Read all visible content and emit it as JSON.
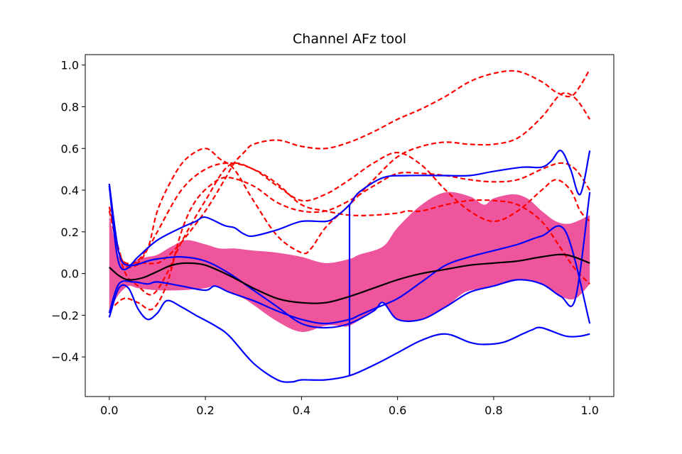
{
  "chart_data": {
    "type": "line",
    "title": "Channel AFz tool",
    "xlabel": "",
    "ylabel": "",
    "xlim": [
      -0.05,
      1.05
    ],
    "ylim": [
      -0.59,
      1.05
    ],
    "xticks": [
      0.0,
      0.2,
      0.4,
      0.6,
      0.8,
      1.0
    ],
    "xtick_labels": [
      "0.0",
      "0.2",
      "0.4",
      "0.6",
      "0.8",
      "1.0"
    ],
    "yticks": [
      -0.4,
      -0.2,
      0.0,
      0.2,
      0.4,
      0.6,
      0.8,
      1.0
    ],
    "ytick_labels": [
      "−0.4",
      "−0.2",
      "0.0",
      "0.2",
      "0.4",
      "0.6",
      "0.8",
      "1.0"
    ],
    "grid": false,
    "legend": "none",
    "colors": {
      "band": "#ee559c",
      "outlier": "#ff0000",
      "envelope": "#0000ff",
      "median": "#000000"
    },
    "band": {
      "upper": [
        [
          0.0,
          0.28
        ],
        [
          0.02,
          0.08
        ],
        [
          0.04,
          0.04
        ],
        [
          0.06,
          0.07
        ],
        [
          0.08,
          0.08
        ],
        [
          0.1,
          0.09
        ],
        [
          0.13,
          0.13
        ],
        [
          0.16,
          0.16
        ],
        [
          0.2,
          0.14
        ],
        [
          0.23,
          0.12
        ],
        [
          0.26,
          0.12
        ],
        [
          0.3,
          0.11
        ],
        [
          0.35,
          0.1
        ],
        [
          0.4,
          0.08
        ],
        [
          0.45,
          0.05
        ],
        [
          0.5,
          0.07
        ],
        [
          0.52,
          0.09
        ],
        [
          0.57,
          0.13
        ],
        [
          0.6,
          0.22
        ],
        [
          0.65,
          0.33
        ],
        [
          0.7,
          0.39
        ],
        [
          0.75,
          0.37
        ],
        [
          0.78,
          0.33
        ],
        [
          0.8,
          0.36
        ],
        [
          0.84,
          0.38
        ],
        [
          0.87,
          0.36
        ],
        [
          0.9,
          0.3
        ],
        [
          0.93,
          0.25
        ],
        [
          0.96,
          0.24
        ],
        [
          1.0,
          0.28
        ]
      ],
      "lower": [
        [
          0.0,
          -0.18
        ],
        [
          0.02,
          -0.1
        ],
        [
          0.04,
          -0.06
        ],
        [
          0.06,
          -0.07
        ],
        [
          0.1,
          -0.08
        ],
        [
          0.15,
          -0.08
        ],
        [
          0.2,
          -0.07
        ],
        [
          0.22,
          -0.06
        ],
        [
          0.25,
          -0.09
        ],
        [
          0.28,
          -0.12
        ],
        [
          0.3,
          -0.15
        ],
        [
          0.35,
          -0.23
        ],
        [
          0.4,
          -0.28
        ],
        [
          0.45,
          -0.25
        ],
        [
          0.48,
          -0.25
        ],
        [
          0.5,
          -0.25
        ],
        [
          0.55,
          -0.18
        ],
        [
          0.57,
          -0.14
        ],
        [
          0.6,
          -0.22
        ],
        [
          0.65,
          -0.22
        ],
        [
          0.7,
          -0.16
        ],
        [
          0.74,
          -0.09
        ],
        [
          0.78,
          -0.07
        ],
        [
          0.82,
          -0.05
        ],
        [
          0.86,
          -0.03
        ],
        [
          0.9,
          -0.05
        ],
        [
          0.94,
          -0.11
        ],
        [
          0.97,
          -0.12
        ],
        [
          1.0,
          -0.05
        ]
      ]
    },
    "median": [
      [
        0.0,
        0.03
      ],
      [
        0.02,
        -0.01
      ],
      [
        0.04,
        -0.03
      ],
      [
        0.07,
        -0.02
      ],
      [
        0.1,
        0.01
      ],
      [
        0.13,
        0.04
      ],
      [
        0.16,
        0.05
      ],
      [
        0.2,
        0.04
      ],
      [
        0.25,
        -0.01
      ],
      [
        0.3,
        -0.07
      ],
      [
        0.35,
        -0.12
      ],
      [
        0.4,
        -0.14
      ],
      [
        0.45,
        -0.14
      ],
      [
        0.5,
        -0.11
      ],
      [
        0.55,
        -0.07
      ],
      [
        0.6,
        -0.03
      ],
      [
        0.65,
        0.0
      ],
      [
        0.7,
        0.02
      ],
      [
        0.75,
        0.04
      ],
      [
        0.8,
        0.05
      ],
      [
        0.85,
        0.06
      ],
      [
        0.9,
        0.08
      ],
      [
        0.95,
        0.09
      ],
      [
        1.0,
        0.05
      ]
    ],
    "envelope_upper": [
      [
        0.0,
        0.43
      ],
      [
        0.02,
        0.1
      ],
      [
        0.04,
        0.04
      ],
      [
        0.06,
        0.08
      ],
      [
        0.1,
        0.16
      ],
      [
        0.15,
        0.22
      ],
      [
        0.18,
        0.25
      ],
      [
        0.2,
        0.27
      ],
      [
        0.24,
        0.23
      ],
      [
        0.26,
        0.22
      ],
      [
        0.28,
        0.19
      ],
      [
        0.3,
        0.18
      ],
      [
        0.35,
        0.21
      ],
      [
        0.4,
        0.25
      ],
      [
        0.45,
        0.25
      ],
      [
        0.47,
        0.27
      ],
      [
        0.5,
        0.33
      ],
      [
        0.52,
        0.39
      ],
      [
        0.57,
        0.46
      ],
      [
        0.62,
        0.47
      ],
      [
        0.7,
        0.47
      ],
      [
        0.75,
        0.47
      ],
      [
        0.8,
        0.49
      ],
      [
        0.86,
        0.51
      ],
      [
        0.9,
        0.51
      ],
      [
        0.92,
        0.54
      ],
      [
        0.94,
        0.59
      ],
      [
        0.96,
        0.5
      ],
      [
        0.98,
        0.38
      ],
      [
        1.0,
        0.59
      ]
    ],
    "envelope_lower": [
      [
        0.0,
        -0.21
      ],
      [
        0.02,
        -0.07
      ],
      [
        0.04,
        -0.07
      ],
      [
        0.06,
        -0.17
      ],
      [
        0.08,
        -0.22
      ],
      [
        0.1,
        -0.19
      ],
      [
        0.12,
        -0.13
      ],
      [
        0.15,
        -0.16
      ],
      [
        0.18,
        -0.2
      ],
      [
        0.22,
        -0.25
      ],
      [
        0.25,
        -0.3
      ],
      [
        0.3,
        -0.43
      ],
      [
        0.35,
        -0.51
      ],
      [
        0.38,
        -0.52
      ],
      [
        0.4,
        -0.51
      ],
      [
        0.45,
        -0.51
      ],
      [
        0.5,
        -0.49
      ],
      [
        0.55,
        -0.44
      ],
      [
        0.6,
        -0.38
      ],
      [
        0.65,
        -0.32
      ],
      [
        0.7,
        -0.29
      ],
      [
        0.75,
        -0.33
      ],
      [
        0.78,
        -0.34
      ],
      [
        0.82,
        -0.33
      ],
      [
        0.86,
        -0.29
      ],
      [
        0.88,
        -0.27
      ],
      [
        0.9,
        -0.26
      ],
      [
        0.95,
        -0.3
      ],
      [
        0.98,
        -0.3
      ],
      [
        1.0,
        -0.29
      ]
    ],
    "whisker": {
      "x": 0.5,
      "y_from": -0.49,
      "y_to": 0.33
    },
    "blue_curves": [
      [
        [
          0.0,
          0.42
        ],
        [
          0.02,
          0.05
        ],
        [
          0.05,
          0.04
        ],
        [
          0.08,
          0.06
        ],
        [
          0.1,
          0.07
        ],
        [
          0.15,
          0.08
        ],
        [
          0.2,
          0.06
        ],
        [
          0.25,
          0.0
        ],
        [
          0.3,
          -0.08
        ],
        [
          0.35,
          -0.16
        ],
        [
          0.4,
          -0.24
        ],
        [
          0.45,
          -0.26
        ],
        [
          0.5,
          -0.24
        ],
        [
          0.55,
          -0.18
        ],
        [
          0.57,
          -0.14
        ],
        [
          0.6,
          -0.22
        ],
        [
          0.65,
          -0.22
        ],
        [
          0.7,
          -0.16
        ],
        [
          0.75,
          -0.09
        ],
        [
          0.8,
          -0.06
        ],
        [
          0.85,
          -0.03
        ],
        [
          0.9,
          -0.05
        ],
        [
          0.94,
          -0.11
        ],
        [
          0.97,
          -0.12
        ],
        [
          1.0,
          0.39
        ]
      ],
      [
        [
          0.0,
          -0.19
        ],
        [
          0.02,
          -0.05
        ],
        [
          0.05,
          -0.04
        ],
        [
          0.08,
          -0.05
        ],
        [
          0.1,
          -0.04
        ],
        [
          0.15,
          -0.06
        ],
        [
          0.2,
          -0.08
        ],
        [
          0.22,
          -0.06
        ],
        [
          0.25,
          -0.09
        ],
        [
          0.3,
          -0.13
        ],
        [
          0.35,
          -0.18
        ],
        [
          0.4,
          -0.22
        ],
        [
          0.45,
          -0.24
        ],
        [
          0.5,
          -0.22
        ],
        [
          0.52,
          -0.2
        ],
        [
          0.55,
          -0.17
        ],
        [
          0.6,
          -0.12
        ],
        [
          0.65,
          -0.04
        ],
        [
          0.7,
          0.04
        ],
        [
          0.75,
          0.08
        ],
        [
          0.8,
          0.11
        ],
        [
          0.85,
          0.14
        ],
        [
          0.9,
          0.18
        ],
        [
          0.95,
          0.2
        ],
        [
          1.0,
          -0.24
        ]
      ]
    ],
    "red_dashed": [
      [
        [
          0.0,
          0.43
        ],
        [
          0.02,
          0.1
        ],
        [
          0.05,
          0.04
        ],
        [
          0.08,
          0.12
        ],
        [
          0.1,
          0.3
        ],
        [
          0.13,
          0.45
        ],
        [
          0.16,
          0.55
        ],
        [
          0.2,
          0.6
        ],
        [
          0.23,
          0.55
        ],
        [
          0.26,
          0.5
        ],
        [
          0.3,
          0.35
        ],
        [
          0.35,
          0.18
        ],
        [
          0.4,
          0.1
        ],
        [
          0.42,
          0.12
        ],
        [
          0.45,
          0.22
        ],
        [
          0.5,
          0.33
        ],
        [
          0.55,
          0.45
        ],
        [
          0.6,
          0.56
        ],
        [
          0.65,
          0.61
        ],
        [
          0.7,
          0.63
        ],
        [
          0.75,
          0.62
        ],
        [
          0.8,
          0.62
        ],
        [
          0.85,
          0.65
        ],
        [
          0.9,
          0.75
        ],
        [
          0.94,
          0.86
        ],
        [
          0.97,
          0.84
        ],
        [
          1.0,
          0.74
        ]
      ],
      [
        [
          0.0,
          0.32
        ],
        [
          0.03,
          0.05
        ],
        [
          0.07,
          0.05
        ],
        [
          0.1,
          0.05
        ],
        [
          0.12,
          0.08
        ],
        [
          0.15,
          0.15
        ],
        [
          0.2,
          0.3
        ],
        [
          0.24,
          0.45
        ],
        [
          0.26,
          0.53
        ],
        [
          0.28,
          0.58
        ],
        [
          0.3,
          0.62
        ],
        [
          0.35,
          0.64
        ],
        [
          0.4,
          0.61
        ],
        [
          0.45,
          0.6
        ],
        [
          0.5,
          0.63
        ],
        [
          0.55,
          0.68
        ],
        [
          0.6,
          0.74
        ],
        [
          0.65,
          0.79
        ],
        [
          0.7,
          0.85
        ],
        [
          0.75,
          0.92
        ],
        [
          0.8,
          0.96
        ],
        [
          0.85,
          0.97
        ],
        [
          0.9,
          0.92
        ],
        [
          0.93,
          0.87
        ],
        [
          0.96,
          0.85
        ],
        [
          0.98,
          0.9
        ],
        [
          1.0,
          0.98
        ]
      ],
      [
        [
          0.0,
          -0.18
        ],
        [
          0.03,
          -0.12
        ],
        [
          0.06,
          -0.14
        ],
        [
          0.09,
          -0.17
        ],
        [
          0.12,
          -0.05
        ],
        [
          0.15,
          0.2
        ],
        [
          0.18,
          0.35
        ],
        [
          0.22,
          0.44
        ],
        [
          0.25,
          0.46
        ],
        [
          0.3,
          0.42
        ],
        [
          0.35,
          0.34
        ],
        [
          0.4,
          0.3
        ],
        [
          0.45,
          0.3
        ],
        [
          0.5,
          0.35
        ],
        [
          0.55,
          0.42
        ],
        [
          0.6,
          0.48
        ],
        [
          0.65,
          0.48
        ],
        [
          0.7,
          0.47
        ],
        [
          0.75,
          0.45
        ],
        [
          0.8,
          0.44
        ],
        [
          0.85,
          0.45
        ],
        [
          0.9,
          0.5
        ],
        [
          0.94,
          0.53
        ],
        [
          0.97,
          0.5
        ],
        [
          1.0,
          0.4
        ]
      ],
      [
        [
          0.0,
          0.3
        ],
        [
          0.03,
          0.02
        ],
        [
          0.06,
          -0.06
        ],
        [
          0.09,
          -0.1
        ],
        [
          0.12,
          0.0
        ],
        [
          0.15,
          0.15
        ],
        [
          0.2,
          0.35
        ],
        [
          0.25,
          0.52
        ],
        [
          0.3,
          0.5
        ],
        [
          0.35,
          0.43
        ],
        [
          0.4,
          0.33
        ],
        [
          0.45,
          0.3
        ],
        [
          0.5,
          0.28
        ],
        [
          0.55,
          0.28
        ],
        [
          0.6,
          0.29
        ],
        [
          0.62,
          0.3
        ],
        [
          0.65,
          0.3
        ],
        [
          0.7,
          0.33
        ],
        [
          0.75,
          0.35
        ],
        [
          0.8,
          0.35
        ],
        [
          0.85,
          0.33
        ],
        [
          0.9,
          0.25
        ],
        [
          0.94,
          0.12
        ],
        [
          0.97,
          0.02
        ],
        [
          1.0,
          -0.05
        ]
      ],
      [
        [
          0.0,
          0.42
        ],
        [
          0.02,
          0.1
        ],
        [
          0.05,
          0.05
        ],
        [
          0.08,
          0.12
        ],
        [
          0.1,
          0.2
        ],
        [
          0.15,
          0.4
        ],
        [
          0.2,
          0.5
        ],
        [
          0.25,
          0.53
        ],
        [
          0.3,
          0.5
        ],
        [
          0.35,
          0.42
        ],
        [
          0.4,
          0.35
        ],
        [
          0.45,
          0.38
        ],
        [
          0.5,
          0.45
        ],
        [
          0.55,
          0.53
        ],
        [
          0.6,
          0.58
        ],
        [
          0.65,
          0.52
        ],
        [
          0.7,
          0.4
        ],
        [
          0.75,
          0.3
        ],
        [
          0.8,
          0.25
        ],
        [
          0.85,
          0.3
        ],
        [
          0.9,
          0.4
        ],
        [
          0.93,
          0.45
        ],
        [
          0.96,
          0.4
        ],
        [
          0.98,
          0.3
        ],
        [
          1.0,
          0.25
        ]
      ]
    ]
  }
}
